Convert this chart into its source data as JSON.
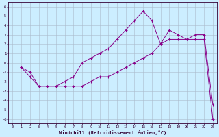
{
  "xlabel": "Windchill (Refroidissement éolien,°C)",
  "background_color": "#cceeff",
  "grid_color": "#aabbcc",
  "line_color": "#880088",
  "xlim": [
    -0.5,
    23.5
  ],
  "ylim": [
    -6.5,
    6.5
  ],
  "xticks": [
    0,
    1,
    2,
    3,
    4,
    5,
    6,
    7,
    8,
    9,
    10,
    11,
    12,
    13,
    14,
    15,
    16,
    17,
    18,
    19,
    20,
    21,
    22,
    23
  ],
  "yticks": [
    -6,
    -5,
    -4,
    -3,
    -2,
    -1,
    0,
    1,
    2,
    3,
    4,
    5,
    6
  ],
  "line1_x": [
    1,
    2,
    3,
    4,
    5,
    6,
    7,
    8,
    9,
    10,
    11,
    12,
    13,
    14,
    15,
    16,
    17,
    18,
    19,
    20,
    21,
    22,
    23
  ],
  "line1_y": [
    -0.5,
    -1.0,
    -2.5,
    -2.5,
    -2.5,
    -2.0,
    -1.5,
    0.0,
    0.5,
    1.0,
    1.5,
    2.5,
    3.5,
    4.5,
    5.5,
    4.5,
    2.0,
    3.5,
    3.0,
    2.5,
    3.0,
    3.0,
    -4.5
  ],
  "line2_x": [
    1,
    2,
    3,
    4,
    5,
    6,
    7,
    8,
    9,
    10,
    11,
    12,
    13,
    14,
    15,
    16,
    17,
    18,
    19,
    20,
    21,
    22,
    23
  ],
  "line2_y": [
    -0.5,
    -1.5,
    -2.5,
    -2.5,
    -2.5,
    -2.5,
    -2.5,
    -2.5,
    -2.0,
    -1.5,
    -1.5,
    -1.0,
    -0.5,
    0.0,
    0.5,
    1.0,
    2.0,
    2.5,
    2.5,
    2.5,
    2.5,
    2.5,
    -6.0
  ]
}
